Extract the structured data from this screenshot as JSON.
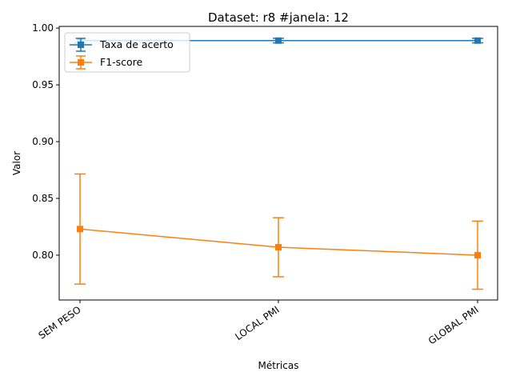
{
  "chart_data": {
    "type": "line",
    "title": "Dataset: r8 #janela: 12",
    "xlabel": "Métricas",
    "ylabel": "Valor",
    "categories": [
      "SEM PESO",
      "LOCAL PMI",
      "GLOBAL PMI"
    ],
    "ylim": [
      0.7605,
      1.0015
    ],
    "yticks": [
      "0.80",
      "0.85",
      "0.90",
      "0.95",
      "1.00"
    ],
    "ytick_values": [
      0.8,
      0.85,
      0.9,
      0.95,
      1.0
    ],
    "grid": false,
    "legend_position": "top-left",
    "series": [
      {
        "name": "Taxa de acerto",
        "color": "#1f77b4",
        "marker": "square",
        "values": [
          0.989,
          0.989,
          0.989
        ],
        "errors": [
          0.002,
          0.002,
          0.002
        ]
      },
      {
        "name": "F1-score",
        "color": "#ff7f0e",
        "marker": "square",
        "values": [
          0.823,
          0.807,
          0.8
        ],
        "errors": [
          0.0485,
          0.026,
          0.03
        ]
      }
    ]
  }
}
